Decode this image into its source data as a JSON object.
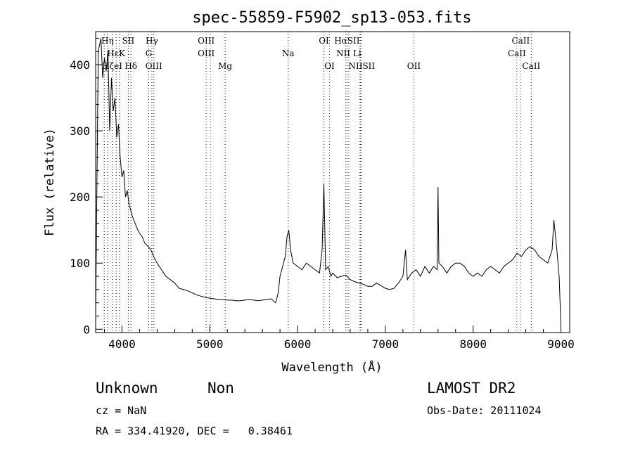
{
  "chart_data": {
    "type": "line",
    "title": "spec-55859-F5902_sp13-053.fits",
    "xlabel": "Wavelength (Å)",
    "ylabel": "Flux (relative)",
    "xlim": [
      3700,
      9100
    ],
    "ylim": [
      -5,
      450
    ],
    "xticks": [
      4000,
      5000,
      6000,
      7000,
      8000,
      9000
    ],
    "yticks": [
      0,
      100,
      200,
      300,
      400
    ],
    "series": [
      {
        "x": [
          3700,
          3730,
          3760,
          3780,
          3800,
          3820,
          3840,
          3860,
          3880,
          3900,
          3920,
          3940,
          3960,
          3980,
          4000,
          4020,
          4040,
          4060,
          4080,
          4100,
          4120,
          4150,
          4180,
          4200,
          4230,
          4260,
          4300,
          4330,
          4360,
          4400,
          4450,
          4500,
          4550,
          4600,
          4650,
          4700,
          4750,
          4800,
          4850,
          4900,
          4950,
          5000,
          5050,
          5100,
          5150,
          5200,
          5250,
          5300,
          5350,
          5400,
          5450,
          5500,
          5550,
          5600,
          5650,
          5700,
          5750,
          5780,
          5800,
          5830,
          5860,
          5880,
          5900,
          5920,
          5950,
          6000,
          6050,
          6100,
          6150,
          6200,
          6250,
          6280,
          6300,
          6320,
          6350,
          6380,
          6400,
          6450,
          6500,
          6550,
          6600,
          6650,
          6700,
          6750,
          6800,
          6850,
          6900,
          6950,
          7000,
          7050,
          7100,
          7150,
          7200,
          7230,
          7250,
          7300,
          7350,
          7400,
          7450,
          7500,
          7550,
          7590,
          7600,
          7610,
          7650,
          7700,
          7750,
          7800,
          7850,
          7900,
          7950,
          8000,
          8050,
          8100,
          8150,
          8200,
          8250,
          8300,
          8350,
          8400,
          8450,
          8500,
          8550,
          8600,
          8650,
          8700,
          8750,
          8800,
          8850,
          8900,
          8920,
          8950,
          8980,
          9000
        ],
        "y": [
          20,
          420,
          440,
          380,
          410,
          390,
          420,
          300,
          380,
          330,
          350,
          290,
          310,
          260,
          230,
          240,
          200,
          210,
          190,
          180,
          170,
          160,
          150,
          145,
          140,
          130,
          125,
          120,
          110,
          100,
          90,
          80,
          75,
          70,
          62,
          60,
          58,
          55,
          52,
          50,
          48,
          47,
          46,
          45,
          45,
          44,
          44,
          43,
          43,
          44,
          45,
          44,
          43,
          44,
          45,
          46,
          40,
          55,
          80,
          95,
          110,
          140,
          150,
          120,
          100,
          95,
          90,
          100,
          95,
          90,
          85,
          120,
          220,
          90,
          95,
          80,
          85,
          78,
          80,
          82,
          75,
          72,
          70,
          68,
          65,
          65,
          70,
          66,
          62,
          60,
          62,
          70,
          80,
          120,
          75,
          85,
          90,
          80,
          95,
          85,
          95,
          90,
          215,
          100,
          95,
          85,
          95,
          100,
          100,
          95,
          85,
          80,
          85,
          80,
          90,
          95,
          90,
          85,
          95,
          100,
          105,
          115,
          110,
          120,
          125,
          120,
          110,
          105,
          100,
          120,
          165,
          125,
          80,
          5
        ]
      }
    ],
    "lines": [
      {
        "label": "Hη",
        "x": 3835,
        "row": 0
      },
      {
        "label": "SII",
        "x": 4072,
        "row": 0
      },
      {
        "label": "Hγ",
        "x": 4340,
        "row": 0
      },
      {
        "label": "OIII",
        "x": 4959,
        "row": 0
      },
      {
        "label": "OI",
        "x": 6300,
        "row": 0
      },
      {
        "label": "HαSII",
        "x": 6563,
        "row": 0
      },
      {
        "label": "CaII",
        "x": 8542,
        "row": 0
      },
      {
        "label": "HεK",
        "x": 3934,
        "row": 1
      },
      {
        "label": "G",
        "x": 4304,
        "row": 1
      },
      {
        "label": "OIII",
        "x": 4959,
        "row": 1
      },
      {
        "label": "Na",
        "x": 5893,
        "row": 1
      },
      {
        "label": "NII Li",
        "x": 6584,
        "row": 1
      },
      {
        "label": "CaII",
        "x": 8498,
        "row": 1
      },
      {
        "label": "HζeI",
        "x": 3889,
        "row": 2
      },
      {
        "label": "Hδ",
        "x": 4102,
        "row": 2
      },
      {
        "label": "OIII",
        "x": 4363,
        "row": 2
      },
      {
        "label": "Mg",
        "x": 5175,
        "row": 2
      },
      {
        "label": "OI",
        "x": 6364,
        "row": 2
      },
      {
        "label": "NIISII",
        "x": 6731,
        "row": 2
      },
      {
        "label": "OII",
        "x": 7325,
        "row": 2
      },
      {
        "label": "CaII",
        "x": 8662,
        "row": 2
      }
    ],
    "dotted_lines": [
      {
        "x": 3798,
        "color": "#000000"
      },
      {
        "x": 3835,
        "color": "#000000"
      },
      {
        "x": 3889,
        "color": "#000000"
      },
      {
        "x": 3934,
        "color": "#000000"
      },
      {
        "x": 3970,
        "color": "#000000"
      },
      {
        "x": 4072,
        "color": "#000000"
      },
      {
        "x": 4102,
        "color": "#000000"
      },
      {
        "x": 4304,
        "color": "#000000"
      },
      {
        "x": 4340,
        "color": "#000000"
      },
      {
        "x": 4363,
        "color": "#000000"
      },
      {
        "x": 4959,
        "color": "#cc0000"
      },
      {
        "x": 5007,
        "color": "#cc0000"
      },
      {
        "x": 5175,
        "color": "#000000"
      },
      {
        "x": 5893,
        "color": "#000000"
      },
      {
        "x": 6300,
        "color": "#000000"
      },
      {
        "x": 6364,
        "color": "#cc0000"
      },
      {
        "x": 6548,
        "color": "#cc0000"
      },
      {
        "x": 6563,
        "color": "#000000"
      },
      {
        "x": 6584,
        "color": "#cc0000"
      },
      {
        "x": 6707,
        "color": "#cc0000"
      },
      {
        "x": 6717,
        "color": "#000000"
      },
      {
        "x": 6731,
        "color": "#cc0000"
      },
      {
        "x": 7325,
        "color": "#cc0000"
      },
      {
        "x": 8498,
        "color": "#cc0000"
      },
      {
        "x": 8542,
        "color": "#cc0000"
      },
      {
        "x": 8662,
        "color": "#000000"
      }
    ],
    "grid": false
  },
  "footer": {
    "classification": "Unknown",
    "subclass": "Non",
    "survey": "LAMOST DR2",
    "cz": "cz = NaN",
    "obs_date": "Obs-Date: 20111024",
    "coords": "RA = 334.41920, DEC =   0.38461"
  }
}
